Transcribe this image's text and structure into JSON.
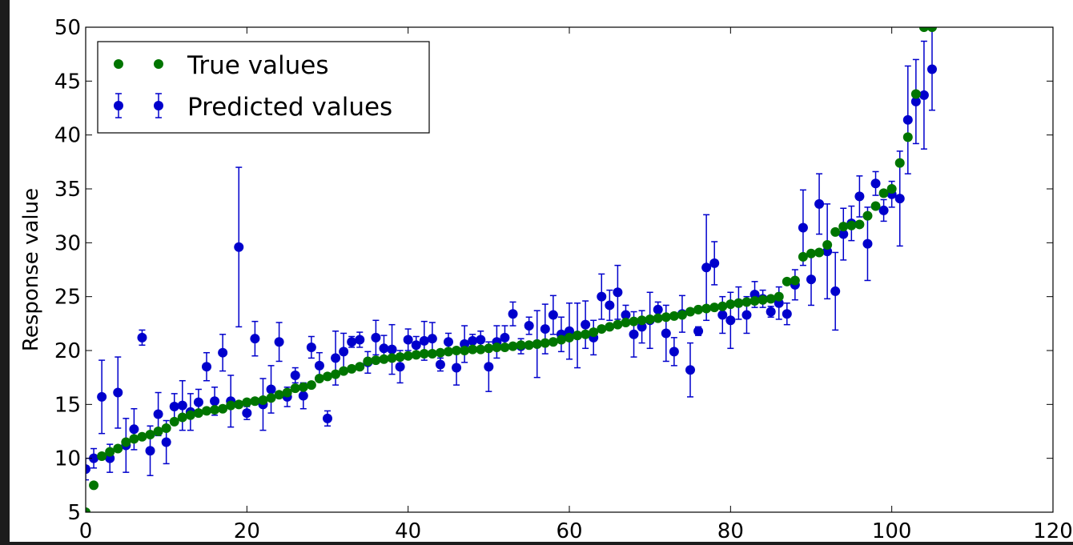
{
  "chart_data": {
    "type": "scatter",
    "title": "",
    "xlabel": "",
    "ylabel": "Response value",
    "xlim": [
      0,
      120
    ],
    "ylim": [
      5,
      50
    ],
    "x_ticks": [
      0,
      20,
      40,
      60,
      80,
      100,
      120
    ],
    "x_tick_labels": [
      "0",
      "20",
      "40",
      "60",
      "80",
      "100",
      "120"
    ],
    "y_ticks": [
      5,
      10,
      15,
      20,
      25,
      30,
      35,
      40,
      45,
      50
    ],
    "y_tick_labels": [
      "5",
      "10",
      "15",
      "20",
      "25",
      "30",
      "35",
      "40",
      "45",
      "50"
    ],
    "grid": false,
    "legend_position": "top-left",
    "series": [
      {
        "name": "True values",
        "color": "#007500",
        "marker": "circle",
        "x": [
          0,
          1,
          2,
          3,
          4,
          5,
          6,
          7,
          8,
          9,
          10,
          11,
          12,
          13,
          14,
          15,
          16,
          17,
          18,
          19,
          20,
          21,
          22,
          23,
          24,
          25,
          26,
          27,
          28,
          29,
          30,
          31,
          32,
          33,
          34,
          35,
          36,
          37,
          38,
          39,
          40,
          41,
          42,
          43,
          44,
          45,
          46,
          47,
          48,
          49,
          50,
          51,
          52,
          53,
          54,
          55,
          56,
          57,
          58,
          59,
          60,
          61,
          62,
          63,
          64,
          65,
          66,
          67,
          68,
          69,
          70,
          71,
          72,
          73,
          74,
          75,
          76,
          77,
          78,
          79,
          80,
          81,
          82,
          83,
          84,
          85,
          86,
          87,
          88,
          89,
          90,
          91,
          92,
          93,
          94,
          95,
          96,
          97,
          98,
          99,
          100,
          101,
          102,
          103,
          104,
          105
        ],
        "y": [
          5,
          7.5,
          10.2,
          10.6,
          10.9,
          11.5,
          11.8,
          12.0,
          12.2,
          12.5,
          12.8,
          13.4,
          13.8,
          14.0,
          14.2,
          14.4,
          14.5,
          14.6,
          14.9,
          15.0,
          15.2,
          15.3,
          15.4,
          15.6,
          15.9,
          16.1,
          16.5,
          16.6,
          16.8,
          17.4,
          17.6,
          17.8,
          18.1,
          18.3,
          18.5,
          19.0,
          19.1,
          19.2,
          19.3,
          19.4,
          19.5,
          19.6,
          19.7,
          19.7,
          19.8,
          19.9,
          20.0,
          20.0,
          20.1,
          20.1,
          20.2,
          20.3,
          20.3,
          20.4,
          20.5,
          20.5,
          20.6,
          20.7,
          20.8,
          21.0,
          21.2,
          21.4,
          21.5,
          21.7,
          22.0,
          22.2,
          22.4,
          22.6,
          22.7,
          22.8,
          22.9,
          23.0,
          23.1,
          23.2,
          23.3,
          23.6,
          23.8,
          23.9,
          24.0,
          24.1,
          24.3,
          24.4,
          24.5,
          24.6,
          24.7,
          24.8,
          25.0,
          26.4,
          26.5,
          28.7,
          29.0,
          29.1,
          29.8,
          31.0,
          31.5,
          31.6,
          31.7,
          32.5,
          33.4,
          34.6,
          35.0,
          37.4,
          39.8,
          43.8,
          50.0,
          50.0
        ]
      },
      {
        "name": "Predicted values",
        "color": "#0000CC",
        "marker": "circle",
        "errorbars": true,
        "x": [
          0,
          1,
          2,
          3,
          4,
          5,
          6,
          7,
          8,
          9,
          10,
          11,
          12,
          13,
          14,
          15,
          16,
          17,
          18,
          19,
          20,
          21,
          22,
          23,
          24,
          25,
          26,
          27,
          28,
          29,
          30,
          31,
          32,
          33,
          34,
          35,
          36,
          37,
          38,
          39,
          40,
          41,
          42,
          43,
          44,
          45,
          46,
          47,
          48,
          49,
          50,
          51,
          52,
          53,
          54,
          55,
          56,
          57,
          58,
          59,
          60,
          61,
          62,
          63,
          64,
          65,
          66,
          67,
          68,
          69,
          70,
          71,
          72,
          73,
          74,
          75,
          76,
          77,
          78,
          79,
          80,
          81,
          82,
          83,
          84,
          85,
          86,
          87,
          88,
          89,
          90,
          91,
          92,
          93,
          94,
          95,
          96,
          97,
          98,
          99,
          100,
          101,
          102,
          103,
          104,
          105
        ],
        "y": [
          9.0,
          10.0,
          15.7,
          10.0,
          16.1,
          11.2,
          12.7,
          21.2,
          10.7,
          14.1,
          11.5,
          14.8,
          14.9,
          14.3,
          15.2,
          18.5,
          15.3,
          19.8,
          15.3,
          29.6,
          14.2,
          21.1,
          15.0,
          16.4,
          20.8,
          15.7,
          17.7,
          15.8,
          20.3,
          18.6,
          13.7,
          19.3,
          19.9,
          20.8,
          21.0,
          18.9,
          21.2,
          20.2,
          20.1,
          18.5,
          21.0,
          20.5,
          20.9,
          21.1,
          18.7,
          20.8,
          18.4,
          20.6,
          20.9,
          21.0,
          18.5,
          20.8,
          21.2,
          23.4,
          20.4,
          22.3,
          20.6,
          22.0,
          23.3,
          21.5,
          21.8,
          21.4,
          22.4,
          21.2,
          25.0,
          24.2,
          25.4,
          23.3,
          21.5,
          22.2,
          22.8,
          23.8,
          21.6,
          19.9,
          23.4,
          18.2,
          21.8,
          27.7,
          28.1,
          23.3,
          22.8,
          24.4,
          23.3,
          25.2,
          24.8,
          23.6,
          24.4,
          23.4,
          26.1,
          31.4,
          26.6,
          33.6,
          29.2,
          25.5,
          30.8,
          31.8,
          34.3,
          29.9,
          35.5,
          33.0,
          34.5,
          34.1,
          41.4,
          43.1,
          43.7,
          46.1
        ],
        "error": [
          1.0,
          0.9,
          3.4,
          1.3,
          3.3,
          2.5,
          1.9,
          0.7,
          2.3,
          2.0,
          2.0,
          1.2,
          2.3,
          1.7,
          1.2,
          1.3,
          1.3,
          1.7,
          2.4,
          7.4,
          0.6,
          1.6,
          2.4,
          2.2,
          1.8,
          0.9,
          0.7,
          1.2,
          1.0,
          1.2,
          0.7,
          2.5,
          1.7,
          0.5,
          0.7,
          1.0,
          1.6,
          1.2,
          2.3,
          1.5,
          1.0,
          0.8,
          1.8,
          1.5,
          0.6,
          0.8,
          1.6,
          1.7,
          0.6,
          0.8,
          2.3,
          1.5,
          1.1,
          1.1,
          0.7,
          0.8,
          3.1,
          2.3,
          1.8,
          1.6,
          2.6,
          3.0,
          2.2,
          1.6,
          2.1,
          1.4,
          2.5,
          0.9,
          2.1,
          1.5,
          2.6,
          0.7,
          2.6,
          1.3,
          1.7,
          2.5,
          0.4,
          4.9,
          2.0,
          1.7,
          2.6,
          1.5,
          1.7,
          1.2,
          0.8,
          0.5,
          1.5,
          1.0,
          1.4,
          3.5,
          2.4,
          2.8,
          4.4,
          3.6,
          2.4,
          1.6,
          1.9,
          3.4,
          1.1,
          1.0,
          1.2,
          4.4,
          5.0,
          3.9,
          5.0,
          3.8
        ]
      }
    ]
  }
}
